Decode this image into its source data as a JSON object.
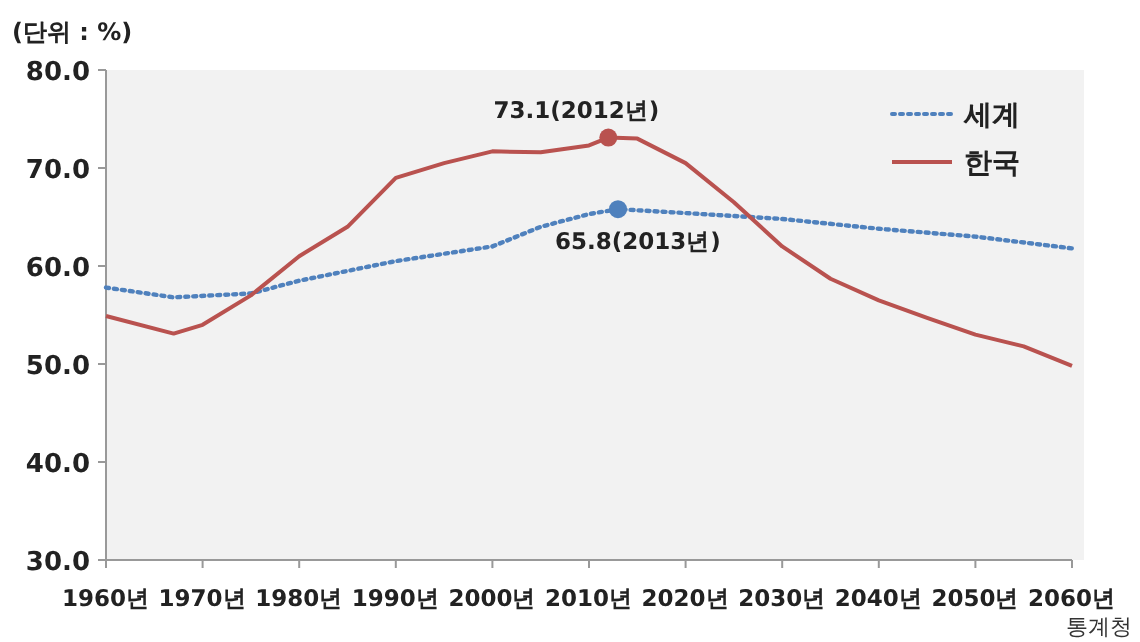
{
  "chart_data": {
    "type": "line",
    "ylabel": "(단위 : %)",
    "xlim": [
      1960,
      2060
    ],
    "ylim": [
      30,
      80
    ],
    "xticks": [
      {
        "value": 1960,
        "label": "1960년"
      },
      {
        "value": 1970,
        "label": "1970년"
      },
      {
        "value": 1980,
        "label": "1980년"
      },
      {
        "value": 1990,
        "label": "1990년"
      },
      {
        "value": 2000,
        "label": "2000년"
      },
      {
        "value": 2010,
        "label": "2010년"
      },
      {
        "value": 2020,
        "label": "2020년"
      },
      {
        "value": 2030,
        "label": "2030년"
      },
      {
        "value": 2040,
        "label": "2040년"
      },
      {
        "value": 2050,
        "label": "2050년"
      },
      {
        "value": 2060,
        "label": "2060년"
      }
    ],
    "yticks": [
      {
        "value": 30,
        "label": "30.0"
      },
      {
        "value": 40,
        "label": "40.0"
      },
      {
        "value": 50,
        "label": "50.0"
      },
      {
        "value": 60,
        "label": "60.0"
      },
      {
        "value": 70,
        "label": "70.0"
      },
      {
        "value": 80,
        "label": "80.0"
      }
    ],
    "grid": false,
    "legend": "top right",
    "marker": "none",
    "series": [
      {
        "name": "세계",
        "color": "#4f81bd",
        "line_style": "dotted",
        "x": [
          1960,
          1967,
          1975,
          1980,
          1990,
          2000,
          2005,
          2010,
          2013,
          2020,
          2030,
          2040,
          2050,
          2060
        ],
        "values": [
          57.8,
          56.8,
          57.2,
          58.5,
          60.5,
          62,
          64,
          65.3,
          65.8,
          65.4,
          64.8,
          63.8,
          63,
          61.8
        ]
      },
      {
        "name": "한국",
        "color": "#b9524f",
        "line_style": "solid",
        "x": [
          1960,
          1967,
          1970,
          1975,
          1980,
          1985,
          1990,
          1995,
          2000,
          2005,
          2010,
          2012,
          2015,
          2020,
          2025,
          2030,
          2035,
          2040,
          2045,
          2050,
          2055,
          2060
        ],
        "values": [
          54.9,
          53.1,
          54,
          57,
          61,
          64,
          69,
          70.5,
          71.7,
          71.6,
          72.3,
          73.1,
          73,
          70.5,
          66.5,
          62,
          58.7,
          56.5,
          54.7,
          53,
          51.8,
          49.8
        ]
      }
    ],
    "annotations": [
      {
        "text": "73.1(2012년)",
        "x": 2012,
        "y": 73.1
      },
      {
        "text": "65.8(2013년)",
        "x": 2013,
        "y": 65.8
      },
      "통계청"
    ]
  }
}
